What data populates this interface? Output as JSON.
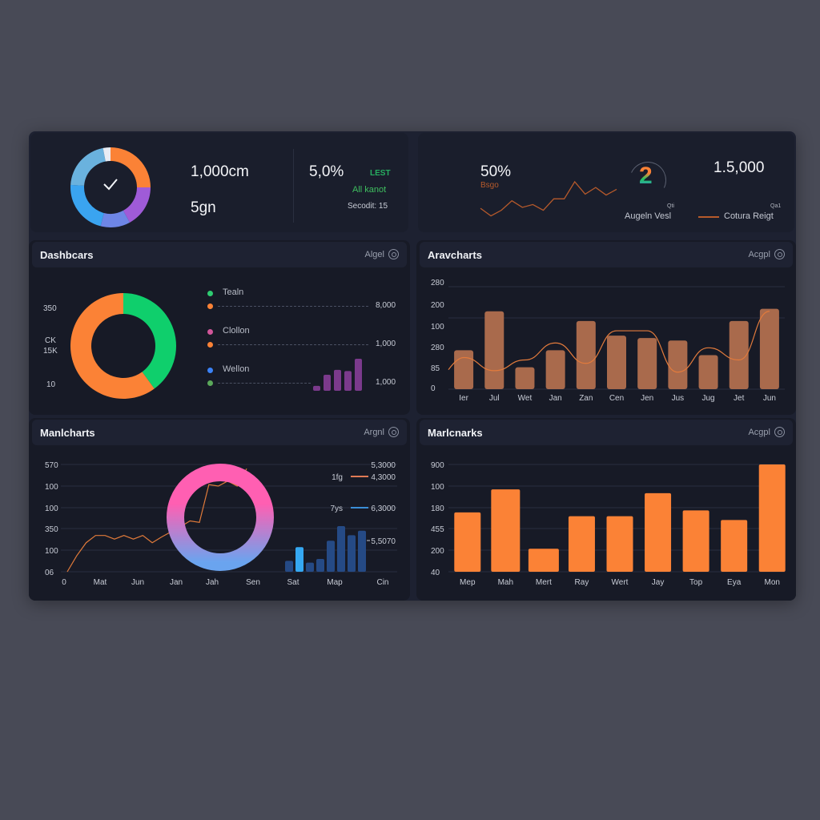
{
  "kpi_left": {
    "value_primary": "1,000cm",
    "value_secondary": "5gn",
    "percent": "5,0%",
    "tag": "LEST",
    "status": "All kanot",
    "footnote": "Secodit: 15",
    "donut_segments": [
      {
        "color": "#fb8236",
        "value": 25
      },
      {
        "color": "#9f5bd8",
        "value": 17
      },
      {
        "color": "#6e86e6",
        "value": 12
      },
      {
        "color": "#3aa4f0",
        "value": 22
      },
      {
        "color": "#6ab2de",
        "value": 21
      },
      {
        "color": "#e8ecf4",
        "value": 3
      }
    ],
    "check_icon": "check-icon"
  },
  "kpi_right": {
    "percent": "50%",
    "percent_label": "Bsgo",
    "number": "1.5,000",
    "legend": [
      {
        "small": "Qti",
        "label": "Augeln Vesl"
      },
      {
        "small": "Qa1",
        "label": "Cotura Reigt",
        "color": "#b75a2b"
      }
    ],
    "badge_glyph": "2",
    "sparkline": [
      10,
      2,
      8,
      18,
      11,
      14,
      8,
      20,
      20,
      38,
      25,
      32,
      24,
      30
    ]
  },
  "panels": {
    "p1": {
      "title": "Dashbcars",
      "action": "Algel"
    },
    "p2": {
      "title": "Aravcharts",
      "action": "Acgpl"
    },
    "p3": {
      "title": "Manlcharts",
      "action": "Argnl"
    },
    "p4": {
      "title": "Marlcnarks",
      "action": "Acgpl"
    }
  },
  "chart_data": [
    {
      "type": "pie",
      "title": "Dashbcars",
      "y_labels": [
        "350",
        "CK",
        "15K",
        "10"
      ],
      "slices": [
        {
          "label": "Green",
          "value": 40,
          "color": "#0fcf6c"
        },
        {
          "label": "Orange",
          "value": 60,
          "color": "#fb8236"
        }
      ],
      "legend": [
        {
          "label": "Tealn",
          "color": "#2ecc71",
          "sub_color": "#fb8236",
          "value": "8,000"
        },
        {
          "label": "Clollon",
          "color": "#d1569a",
          "sub_color": "#fb8236",
          "value": "1,000"
        },
        {
          "label": "Wellon",
          "color": "#3b82f6",
          "sub_color": "#5aa85a",
          "value": "1,000"
        }
      ],
      "mini_bars": {
        "color": "#7b3a8c",
        "values": [
          4,
          13,
          17,
          16,
          26
        ]
      }
    },
    {
      "type": "bar",
      "title": "Aravcharts",
      "categories": [
        "Ier",
        "Jul",
        "Wet",
        "Jan",
        "Zan",
        "Cen",
        "Jen",
        "Jus",
        "Jug",
        "Jet",
        "Jun"
      ],
      "values": [
        80,
        160,
        45,
        80,
        140,
        110,
        105,
        100,
        70,
        140,
        165
      ],
      "line_values": [
        65,
        38,
        60,
        95,
        53,
        120,
        120,
        35,
        85,
        60,
        160
      ],
      "ylabels": [
        "280",
        "200",
        "100",
        "280",
        "85",
        "0"
      ],
      "ylim": [
        0,
        200
      ],
      "bar_color": "#a96a4c",
      "line_color": "#e37b3c",
      "grid": true
    },
    {
      "type": "line",
      "title": "Manlcharts",
      "x_labels": [
        "0",
        "Mat",
        "Jun",
        "Jan",
        "Jah",
        "Sen",
        "Sat",
        "Map",
        "Cin"
      ],
      "ylabels": [
        "570",
        "100",
        "100",
        "350",
        "100",
        "06"
      ],
      "line_values": [
        0,
        22,
        40,
        50,
        50,
        45,
        50,
        45,
        50,
        40,
        48,
        55,
        62,
        70,
        68,
        120,
        118,
        125,
        118,
        142
      ],
      "donut": {
        "gradient": [
          "#ff5fb2",
          "#6aa4ef"
        ]
      },
      "mini_bars": {
        "values": [
          12,
          27,
          10,
          14,
          34,
          50,
          40,
          45
        ],
        "highlight_index": 1,
        "color": "#254a85",
        "highlight_color": "#35a8f2"
      },
      "right_labels": [
        {
          "label": "",
          "value": "5,3000"
        },
        {
          "label": "1fg",
          "value": "4,3000",
          "color": "#e07a55"
        },
        {
          "label": "7ys",
          "value": "6,3000",
          "color": "#3a8ed6"
        },
        {
          "label": "",
          "value": "5,5070"
        }
      ],
      "grid": true
    },
    {
      "type": "bar",
      "title": "Marlcnarks",
      "categories": [
        "Mep",
        "Mah",
        "Mert",
        "Ray",
        "Wert",
        "Jay",
        "Top",
        "Eya",
        "Mon"
      ],
      "values": [
        195,
        255,
        100,
        185,
        185,
        245,
        200,
        175,
        320
      ],
      "ylabels": [
        "900",
        "100",
        "180",
        "455",
        "200",
        "40"
      ],
      "ylim": [
        40,
        320
      ],
      "bar_color": "#fb8236",
      "grid": true
    }
  ]
}
